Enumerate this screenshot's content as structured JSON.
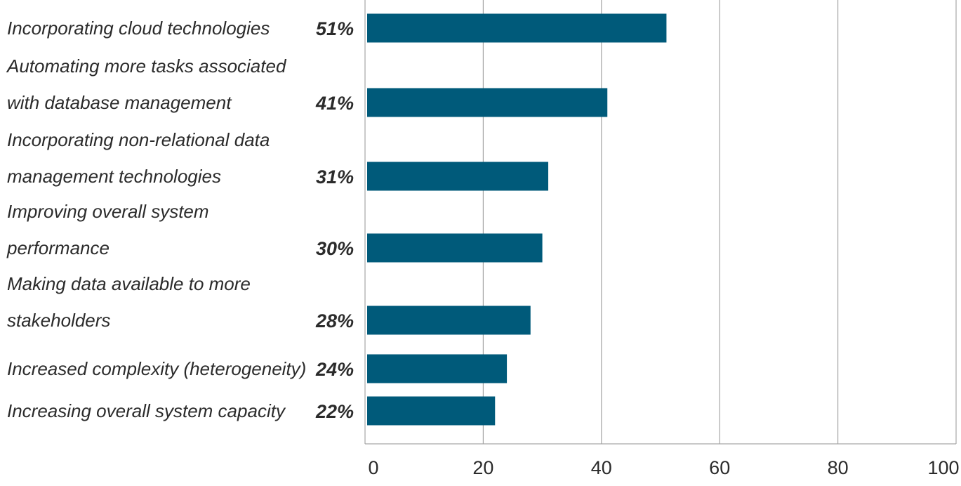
{
  "chart_data": {
    "type": "bar",
    "orientation": "horizontal",
    "categories": [
      [
        "Incorporating cloud technologies"
      ],
      [
        "Automating more tasks associated",
        "with database management"
      ],
      [
        "Incorporating non-relational data",
        "management technologies"
      ],
      [
        "Improving overall system",
        "performance"
      ],
      [
        "Making data available to more",
        "stakeholders"
      ],
      [
        "Increased complexity (heterogeneity)"
      ],
      [
        "Increasing overall system capacity"
      ]
    ],
    "values": [
      51,
      41,
      31,
      30,
      28,
      24,
      22
    ],
    "value_labels": [
      "51%",
      "41%",
      "31%",
      "30%",
      "28%",
      "24%",
      "22%"
    ],
    "x_ticks": [
      "0",
      "20",
      "40",
      "60",
      "80",
      "100"
    ],
    "xlim": [
      0,
      100
    ],
    "grid": "vertical",
    "bar_color": "#005a7a"
  }
}
